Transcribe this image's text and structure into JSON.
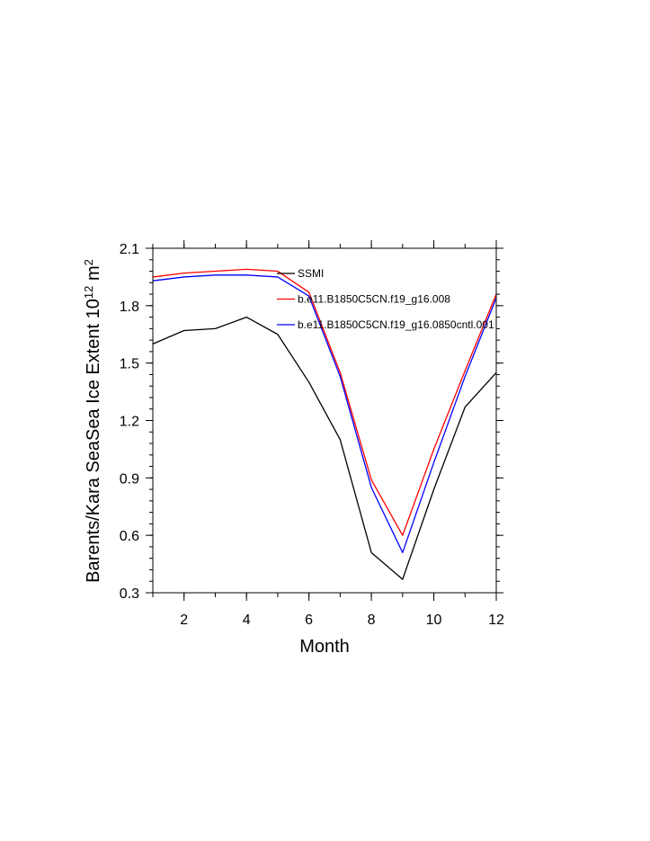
{
  "chart_data": {
    "type": "line",
    "title": "",
    "xlabel": "Month",
    "ylabel_main": "Barents/Kara SeaSea Ice Extent 10",
    "ylabel_exponent": "12",
    "ylabel_unit": " m",
    "ylabel_unit_exponent": "2",
    "xlim": [
      1,
      12
    ],
    "ylim": [
      0.3,
      2.1
    ],
    "x_ticks": [
      2,
      4,
      6,
      8,
      10,
      12
    ],
    "x_tick_labels": [
      "2",
      "4",
      "6",
      "8",
      "10",
      "12"
    ],
    "y_ticks": [
      0.3,
      0.6,
      0.9,
      1.2,
      1.5,
      1.8,
      2.1
    ],
    "y_tick_labels": [
      "0.3",
      "0.6",
      "0.9",
      "1.2",
      "1.5",
      "1.8",
      "2.1"
    ],
    "x": [
      1,
      2,
      3,
      4,
      5,
      6,
      7,
      8,
      9,
      10,
      11,
      12
    ],
    "series": [
      {
        "name": "SSMI",
        "color": "#000000",
        "values": [
          1.6,
          1.67,
          1.68,
          1.74,
          1.65,
          1.4,
          1.1,
          0.51,
          0.37,
          0.84,
          1.27,
          1.45
        ]
      },
      {
        "name": "b.e11.B1850C5CN.f19_g16.008",
        "color": "#ff0000",
        "values": [
          1.95,
          1.97,
          1.98,
          1.99,
          1.98,
          1.87,
          1.45,
          0.89,
          0.6,
          1.05,
          1.46,
          1.86
        ]
      },
      {
        "name": "b.e11.B1850C5CN.f19_g16.0850cntl.001",
        "color": "#0000ff",
        "values": [
          1.93,
          1.95,
          1.96,
          1.96,
          1.95,
          1.85,
          1.43,
          0.85,
          0.51,
          0.98,
          1.43,
          1.84
        ]
      }
    ],
    "legend_position": "top-right"
  }
}
